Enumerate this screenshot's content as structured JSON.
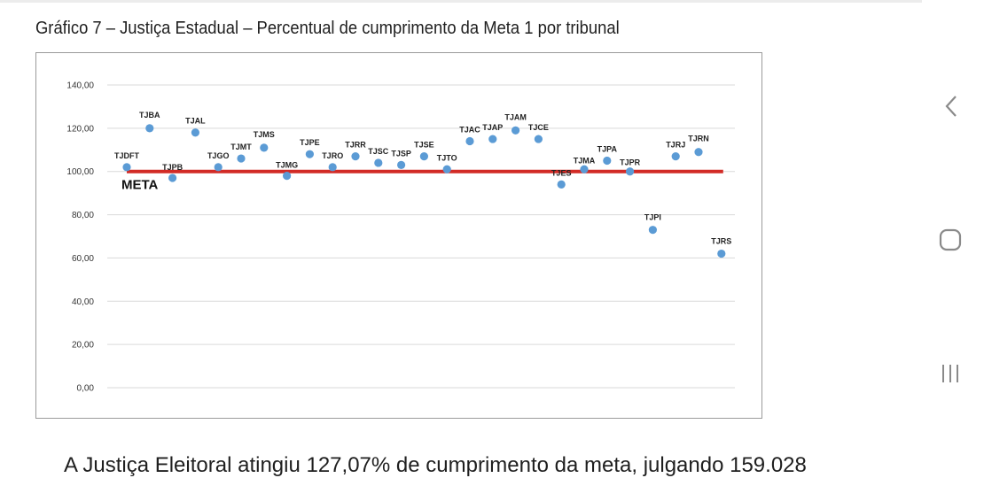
{
  "title": "Gráfico 7 – Justiça Estadual – Percentual de cumprimento da Meta 1 por tribunal",
  "body_text": "A Justiça Eleitoral atingiu 127,07% de cumprimento da meta, julgando 159.028",
  "nav": {
    "back_icon": "chevron-left-icon",
    "home_icon": "rounded-square-icon",
    "recents_icon": "three-bars-icon"
  },
  "colors": {
    "point": "#5b9bd5",
    "meta_line": "#d22b26",
    "gridline": "#d9d9d9",
    "nav_icon": "#8a8a8a"
  },
  "chart_data": {
    "type": "scatter",
    "title": "",
    "xlabel": "",
    "ylabel": "",
    "ylim": [
      0,
      140
    ],
    "y_ticks": [
      "0,00",
      "20,00",
      "40,00",
      "60,00",
      "80,00",
      "100,00",
      "120,00",
      "140,00"
    ],
    "y_tick_values": [
      0,
      20,
      40,
      60,
      80,
      100,
      120,
      140
    ],
    "grid": true,
    "reference_line": {
      "label": "META",
      "value": 100
    },
    "categories": [
      "TJDFT",
      "TJBA",
      "TJPB",
      "TJAL",
      "TJGO",
      "TJMT",
      "TJMS",
      "TJMG",
      "TJPE",
      "TJRO",
      "TJRR",
      "TJSC",
      "TJSP",
      "TJSE",
      "TJTO",
      "TJAC",
      "TJAP",
      "TJAM",
      "TJCE",
      "TJES",
      "TJMA",
      "TJPA",
      "TJPR",
      "TJPI",
      "TJRJ",
      "TJRN",
      "TJRS"
    ],
    "values": [
      102,
      120,
      97,
      118,
      102,
      106,
      111,
      98,
      108,
      102,
      107,
      104,
      103,
      107,
      101,
      114,
      115,
      119,
      115,
      94,
      101,
      105,
      100,
      73,
      107,
      109,
      62
    ]
  }
}
